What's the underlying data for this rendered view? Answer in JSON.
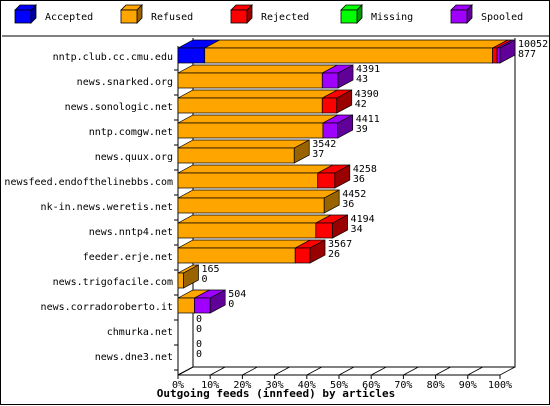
{
  "chart_data": {
    "type": "bar",
    "orientation": "horizontal",
    "stacked": true,
    "normalized_percent": true,
    "three_d": true,
    "title": "Outgoing feeds (innfeed) by articles",
    "xlabel": "",
    "ylabel": "",
    "xlim": [
      0,
      100
    ],
    "x_ticks": [
      "0%",
      "10%",
      "20%",
      "30%",
      "40%",
      "50%",
      "60%",
      "70%",
      "80%",
      "90%",
      "100%"
    ],
    "legend_position": "top",
    "categories": [
      "nntp.club.cc.cmu.edu",
      "news.snarked.org",
      "news.sonologic.net",
      "nntp.comgw.net",
      "news.quux.org",
      "newsfeed.endofthelinebbs.com",
      "nk-in.news.weretis.net",
      "news.nntp4.net",
      "feeder.erje.net",
      "news.trigofacile.com",
      "news.corradoroberto.it",
      "chmurka.net",
      "news.dne3.net"
    ],
    "series": [
      {
        "name": "Accepted",
        "color": "#0000ff",
        "values": [
          8.3,
          0,
          0,
          0,
          0,
          0,
          0,
          0,
          0,
          0,
          0,
          0,
          0
        ]
      },
      {
        "name": "Refused",
        "color": "#ffa500",
        "values": [
          89.4,
          44.8,
          44.8,
          45.0,
          36.1,
          43.4,
          45.4,
          42.8,
          36.4,
          1.7,
          5.1,
          0,
          0
        ]
      },
      {
        "name": "Rejected",
        "color": "#ff0000",
        "values": [
          1.4,
          0,
          4.5,
          0,
          0,
          5.3,
          0,
          5.2,
          4.6,
          0,
          0,
          0,
          0
        ]
      },
      {
        "name": "Missing",
        "color": "#00ff00",
        "values": [
          0,
          0,
          0,
          0,
          0,
          0,
          0,
          0,
          0,
          0,
          0,
          0,
          0
        ]
      },
      {
        "name": "Spooled",
        "color": "#a000ff",
        "values": [
          0.9,
          4.9,
          0,
          4.6,
          0,
          0,
          0,
          0,
          0,
          0,
          4.9,
          0,
          0
        ]
      }
    ],
    "bar_labels": [
      [
        "10052",
        "877"
      ],
      [
        "4391",
        "43"
      ],
      [
        "4390",
        "42"
      ],
      [
        "4411",
        "39"
      ],
      [
        "3542",
        "37"
      ],
      [
        "4258",
        "36"
      ],
      [
        "4452",
        "36"
      ],
      [
        "4194",
        "34"
      ],
      [
        "3567",
        "26"
      ],
      [
        "165",
        "0"
      ],
      [
        "504",
        "0"
      ],
      [
        "0",
        "0"
      ],
      [
        "0",
        "0"
      ]
    ]
  }
}
